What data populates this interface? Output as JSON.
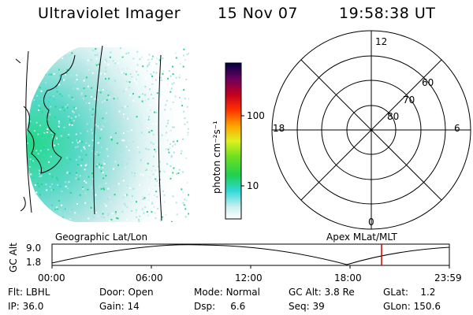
{
  "header": {
    "title": "Ultraviolet Imager",
    "date": "15 Nov 07",
    "time": "19:58:38 UT"
  },
  "colorbar": {
    "unit_label": "photon cm⁻²s⁻¹",
    "ticks": [
      "100",
      "10"
    ]
  },
  "polar": {
    "mlt_labels": {
      "top": "12",
      "left": "18",
      "right": "6",
      "bottom": "0"
    },
    "lat_labels": [
      "60",
      "70",
      "80"
    ]
  },
  "timeline": {
    "left_title": "Geographic Lat/Lon",
    "right_title": "Apex MLat/MLT",
    "ylabel": "GC Alt",
    "y_ticks": [
      "9.0",
      "1.8"
    ],
    "x_ticks": [
      "00:00",
      "06:00",
      "12:00",
      "18:00",
      "23:59"
    ],
    "marker_color": "#d00000"
  },
  "status": {
    "row1": [
      {
        "label": "Flt:",
        "value": "LBHL"
      },
      {
        "label": "Door:",
        "value": "Open"
      },
      {
        "label": "Mode:",
        "value": "Normal"
      },
      {
        "label": "GC Alt:",
        "value": "3.8 Re"
      },
      {
        "label": "GLat:",
        "value": "1.2"
      }
    ],
    "row2": [
      {
        "label": "IP:",
        "value": "36.0"
      },
      {
        "label": "Gain:",
        "value": "14"
      },
      {
        "label": "Dsp:",
        "value": "6.6"
      },
      {
        "label": "Seq:",
        "value": "39"
      },
      {
        "label": "GLon:",
        "value": "150.6"
      }
    ]
  }
}
